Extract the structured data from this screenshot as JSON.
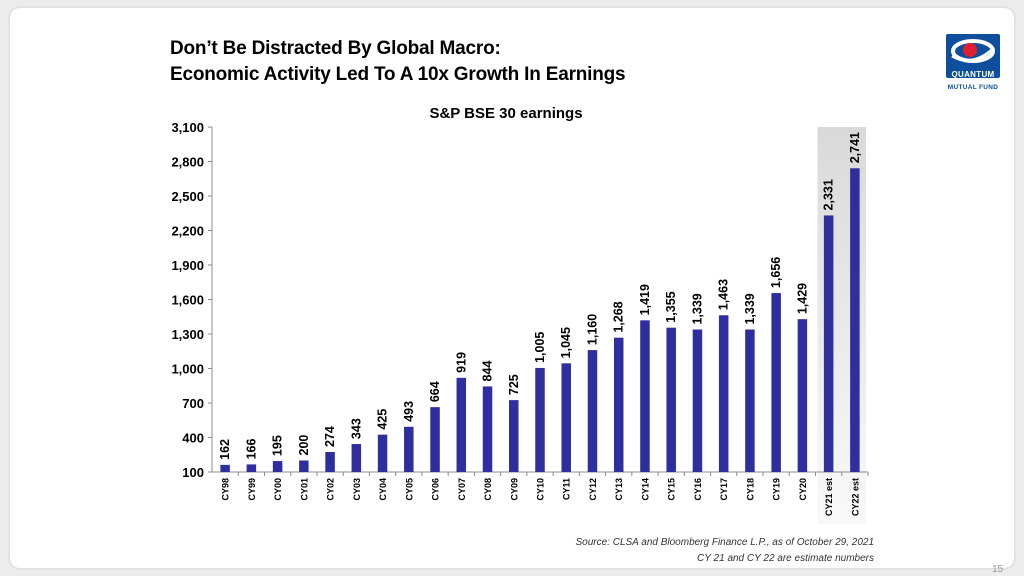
{
  "header": {
    "title_line1": "Don’t Be Distracted By Global Macro:",
    "title_line2": "Economic Activity Led To A 10x Growth In Earnings"
  },
  "logo": {
    "icon": "quantum-globe-icon",
    "word": "QUANTUM",
    "sub": "MUTUAL FUND"
  },
  "colors": {
    "bar": "#2E2E9E",
    "axis": "#8c8c8c",
    "text": "#000000",
    "logo_blue": "#0d4f9c",
    "estimate_shade": "#d9d9d9"
  },
  "chart_data": {
    "type": "bar",
    "title": "S&P BSE 30 earnings",
    "xlabel": "",
    "ylabel": "",
    "categories": [
      "CY98",
      "CY99",
      "CY00",
      "CY01",
      "CY02",
      "CY03",
      "CY04",
      "CY05",
      "CY06",
      "CY07",
      "CY08",
      "CY09",
      "CY10",
      "CY11",
      "CY12",
      "CY13",
      "CY14",
      "CY15",
      "CY16",
      "CY17",
      "CY18",
      "CY19",
      "CY20",
      "CY21 est",
      "CY22 est"
    ],
    "values": [
      162,
      166,
      195,
      200,
      274,
      343,
      425,
      493,
      664,
      919,
      844,
      725,
      1005,
      1045,
      1160,
      1268,
      1419,
      1355,
      1339,
      1463,
      1339,
      1656,
      1429,
      2331,
      2741
    ],
    "value_labels": [
      "162",
      "166",
      "195",
      "200",
      "274",
      "343",
      "425",
      "493",
      "664",
      "919",
      "844",
      "725",
      "1,005",
      "1,045",
      "1,160",
      "1,268",
      "1,419",
      "1,355",
      "1,339",
      "1,463",
      "1,339",
      "1,656",
      "1,429",
      "2,331",
      "2,741"
    ],
    "ylim": [
      100,
      3100
    ],
    "yticks": [
      100,
      400,
      700,
      1000,
      1300,
      1600,
      1900,
      2200,
      2500,
      2800,
      3100
    ],
    "ytick_labels": [
      "100",
      "400",
      "700",
      "1,000",
      "1,300",
      "1,600",
      "1,900",
      "2,200",
      "2,500",
      "2,800",
      "3,100"
    ],
    "grid": false,
    "estimate_categories": [
      "CY21 est",
      "CY22 est"
    ]
  },
  "footer": {
    "source": "Source: CLSA and Bloomberg Finance L.P., as of  October 29, 2021",
    "estimate_note": "CY 21 and CY 22 are estimate numbers",
    "page_number": "15"
  }
}
